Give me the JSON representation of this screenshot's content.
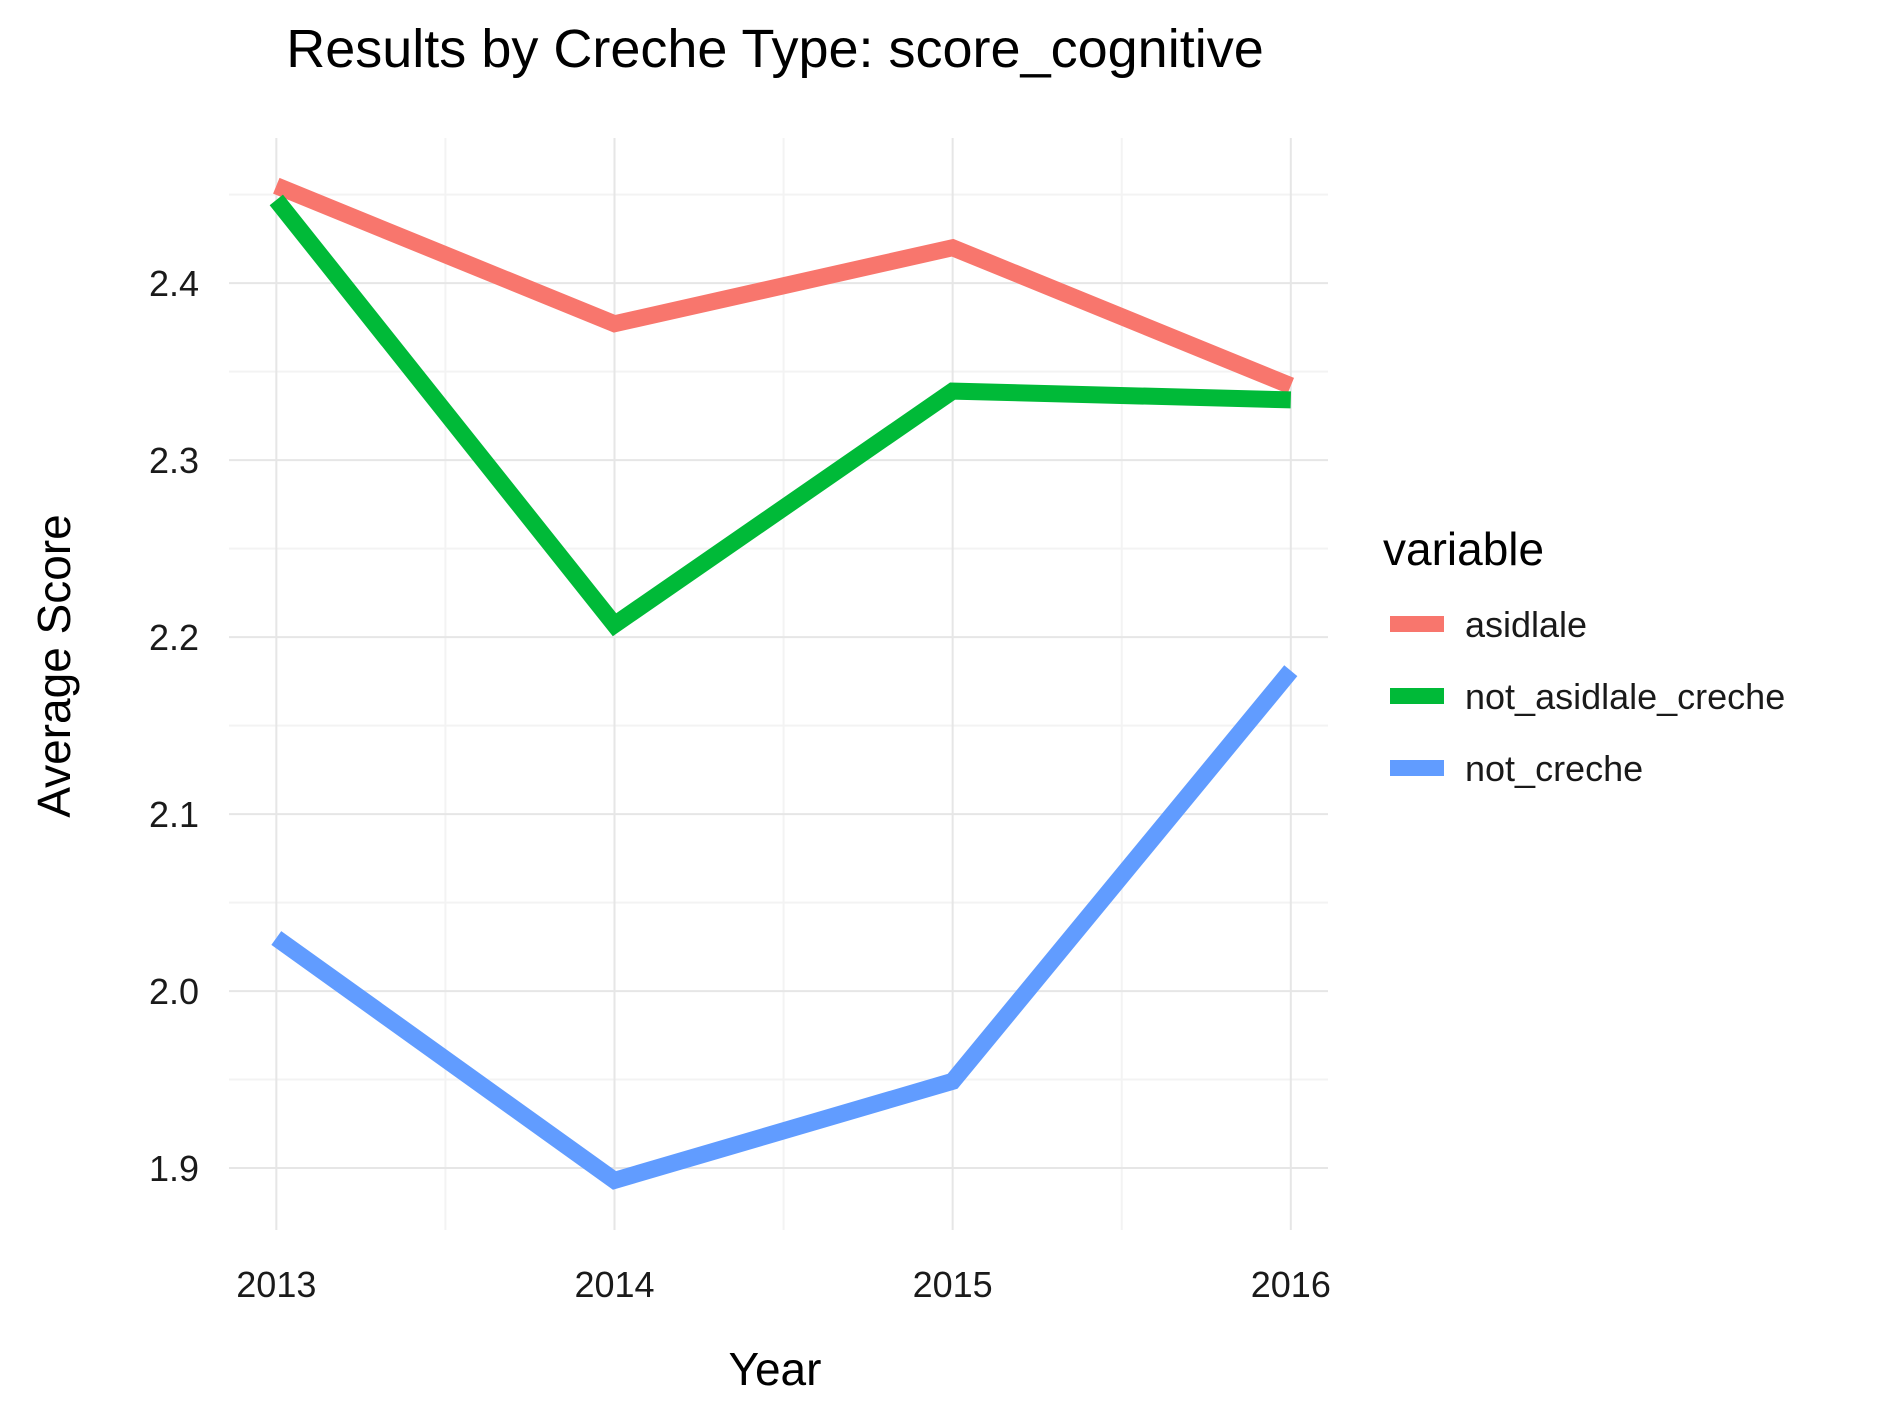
{
  "chart_data": {
    "type": "line",
    "title": "Results by Creche Type: score_cognitive",
    "xlabel": "Year",
    "ylabel": "Average Score",
    "x": [
      2013,
      2014,
      2015,
      2016
    ],
    "x_tick_labels": [
      "2013",
      "2014",
      "2015",
      "2016"
    ],
    "y_ticks": [
      1.9,
      2.0,
      2.1,
      2.2,
      2.3,
      2.4
    ],
    "y_tick_labels": [
      "1.9",
      "2.0",
      "2.1",
      "2.2",
      "2.3",
      "2.4"
    ],
    "xlim": [
      2012.86,
      2016.11
    ],
    "ylim": [
      1.865,
      2.482
    ],
    "grid": true,
    "legend": {
      "title": "variable",
      "position": "right"
    },
    "series": [
      {
        "name": "asidlale",
        "color": "#F8766D",
        "values": [
          2.455,
          2.377,
          2.42,
          2.342
        ]
      },
      {
        "name": "not_asidlale_creche",
        "color": "#00BA38",
        "values": [
          2.447,
          2.207,
          2.339,
          2.334
        ]
      },
      {
        "name": "not_creche",
        "color": "#619CFF",
        "values": [
          2.03,
          1.893,
          1.949,
          2.181
        ]
      }
    ]
  }
}
